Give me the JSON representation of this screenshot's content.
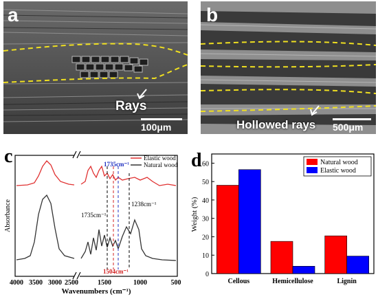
{
  "panel_a": {
    "label": "a",
    "annotation": "Rays",
    "scale_bar": "100μm"
  },
  "panel_b": {
    "label": "b",
    "annotation": "Hollowed rays",
    "scale_bar": "500μm"
  },
  "panel_c": {
    "label": "c",
    "ylabel": "Absorbance",
    "xlabel": "Wavenumbers (cm⁻¹)",
    "xticks": [
      "4000",
      "3500",
      "3000",
      "2500",
      "1500",
      "1000",
      "500"
    ],
    "legend": [
      {
        "name": "Elastic wood",
        "color": "#e03030"
      },
      {
        "name": "Natural wood",
        "color": "#333333"
      }
    ],
    "annotations": [
      {
        "text": "1457cm⁻¹",
        "color": "#2030c0"
      },
      {
        "text": "1735cm⁻¹",
        "color": "#000000"
      },
      {
        "text": "1238cm⁻¹",
        "color": "#000000"
      },
      {
        "text": "1504cm⁻¹",
        "color": "#d02020"
      }
    ]
  },
  "chart_data": {
    "type": "bar",
    "label": "d",
    "categories": [
      "Cellous",
      "Hemicellulose",
      "Lignin"
    ],
    "series": [
      {
        "name": "Natural wood",
        "color": "#ff0000",
        "values": [
          48,
          17.5,
          20.5
        ]
      },
      {
        "name": "Elastic wood",
        "color": "#0000ff",
        "values": [
          56.5,
          4,
          9.5
        ]
      }
    ],
    "ylabel": "Weight (%)",
    "ylim": [
      0,
      65
    ],
    "yticks": [
      0,
      10,
      20,
      30,
      40,
      50,
      60
    ],
    "legend_position": "top-right"
  }
}
